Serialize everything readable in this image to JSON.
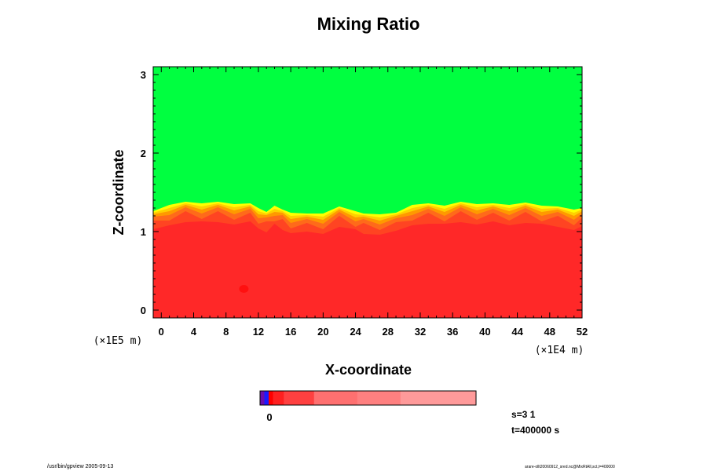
{
  "chart_data": {
    "type": "heatmap",
    "title": "Mixing Ratio",
    "xlabel": "X-coordinate",
    "ylabel": "Z-coordinate",
    "x_scale_label": "(×1E4 m)",
    "y_scale_label": "(×1E5 m)",
    "xlim": [
      -1,
      52
    ],
    "ylim": [
      -0.1,
      3.1
    ],
    "xticks": [
      "0",
      "4",
      "8",
      "12",
      "16",
      "20",
      "24",
      "28",
      "32",
      "36",
      "40",
      "44",
      "48",
      "52"
    ],
    "yticks": [
      "0",
      "1",
      "2",
      "3"
    ],
    "grid": false,
    "upper_region_color": "#00ff40",
    "lower_region_color": "#ff2828",
    "interface_colors": [
      "#ffff00",
      "#ffd000",
      "#ff9900",
      "#ff6a1a",
      "#ff4422"
    ],
    "interface_profile": {
      "x": [
        -1,
        1,
        3,
        5,
        7,
        9,
        11,
        12,
        13,
        14,
        15,
        16,
        18,
        20,
        22,
        24,
        25,
        27,
        29,
        31,
        33,
        35,
        37,
        39,
        41,
        43,
        45,
        47,
        49,
        51,
        52
      ],
      "z": [
        1.26,
        1.34,
        1.38,
        1.36,
        1.38,
        1.35,
        1.36,
        1.3,
        1.25,
        1.33,
        1.28,
        1.24,
        1.23,
        1.23,
        1.32,
        1.26,
        1.23,
        1.22,
        1.24,
        1.34,
        1.36,
        1.33,
        1.38,
        1.35,
        1.36,
        1.34,
        1.37,
        1.33,
        1.32,
        1.28,
        1.3
      ]
    },
    "colorbar": {
      "label": "0",
      "segments": [
        "#6a0dad",
        "#1a1aff",
        "#ff0000",
        "#ff2020",
        "#ff4040",
        "#ff7070",
        "#ff8080",
        "#ff9a9a"
      ],
      "fractions": [
        0.02,
        0.02,
        0.02,
        0.05,
        0.14,
        0.2,
        0.2,
        0.35
      ]
    }
  },
  "info": {
    "s_label": "s=3 1",
    "t_label": "t=400000 s"
  },
  "footer": {
    "left": "/usr/bin/gpview 2005-09-13",
    "right": "arare-ollt20060912_sred.nc@MixRtAll,sct,t=400000"
  }
}
